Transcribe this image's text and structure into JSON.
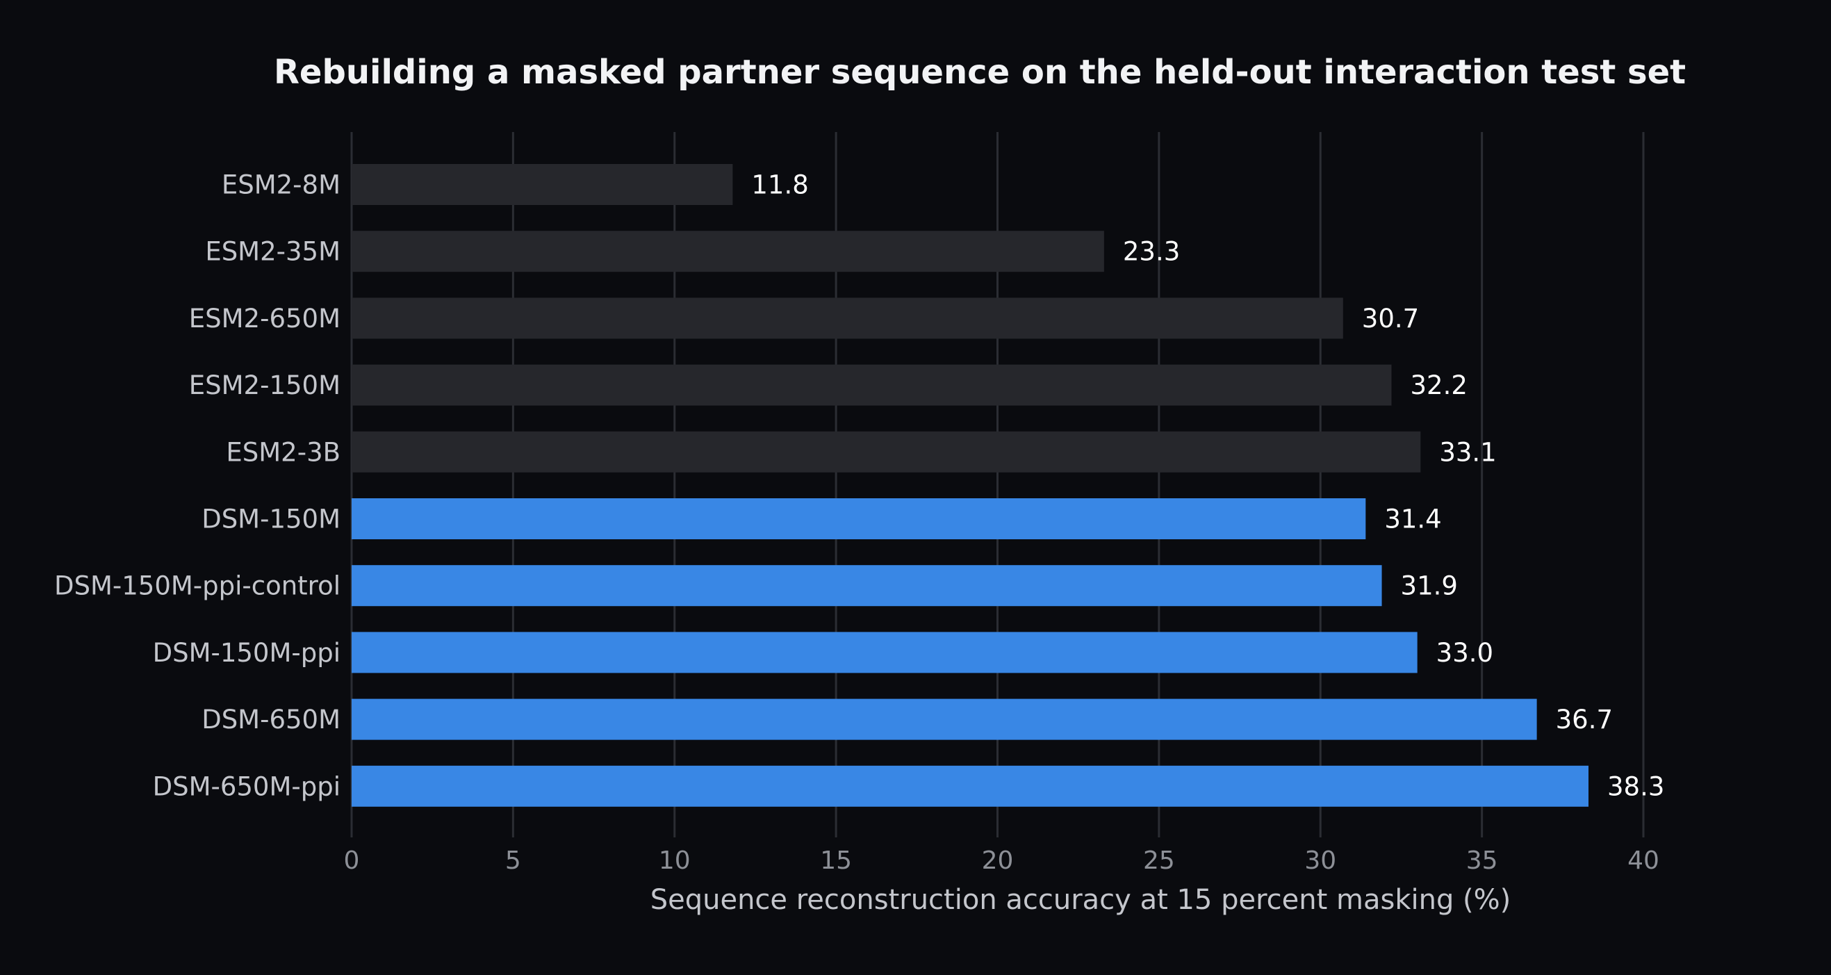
{
  "chart_data": {
    "type": "bar",
    "orientation": "horizontal",
    "title": "Rebuilding a masked partner sequence on the held-out interaction test set",
    "xlabel": "Sequence reconstruction accuracy at 15 percent masking (%)",
    "ylabel": "",
    "xlim": [
      0,
      40
    ],
    "xticks": [
      0,
      5,
      10,
      15,
      20,
      25,
      30,
      35,
      40
    ],
    "grid": "vertical",
    "categories": [
      "ESM2-8M",
      "ESM2-35M",
      "ESM2-650M",
      "ESM2-150M",
      "ESM2-3B",
      "DSM-150M",
      "DSM-150M-ppi-control",
      "DSM-150M-ppi",
      "DSM-650M",
      "DSM-650M-ppi"
    ],
    "values": [
      11.8,
      23.3,
      30.7,
      32.2,
      33.1,
      31.4,
      31.9,
      33.0,
      36.7,
      38.3
    ],
    "value_labels": [
      "11.8",
      "23.3",
      "30.7",
      "32.2",
      "33.1",
      "31.4",
      "31.9",
      "33.0",
      "36.7",
      "38.3"
    ],
    "bar_colors": [
      "#26272c",
      "#26272c",
      "#26272c",
      "#26272c",
      "#26272c",
      "#3987e5",
      "#3987e5",
      "#3987e5",
      "#3987e5",
      "#3987e5"
    ]
  },
  "colors": {
    "background": "#0a0b0f",
    "baseline_bar": "#26272c",
    "dsm_bar": "#3987e5",
    "grid": "#2b2d33"
  }
}
